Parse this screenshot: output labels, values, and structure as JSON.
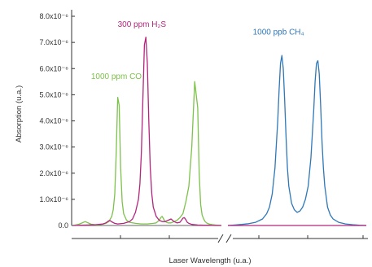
{
  "chart_data": {
    "type": "line",
    "title": "",
    "xlabel": "Laser Wavelength (u.a.)",
    "ylabel": "Absorption (u.a.)",
    "ylim": [
      0,
      8e-06
    ],
    "y_ticks": [
      {
        "value": 0.0,
        "label": "0.0"
      },
      {
        "value": 1e-06,
        "label": "1.0x10⁻⁶"
      },
      {
        "value": 2e-06,
        "label": "2.0x10⁻⁶"
      },
      {
        "value": 3e-06,
        "label": "3.0x10⁻⁶"
      },
      {
        "value": 4e-06,
        "label": "4.0x10⁻⁶"
      },
      {
        "value": 5e-06,
        "label": "5.0x10⁻⁶"
      },
      {
        "value": 6e-06,
        "label": "6.0x10⁻⁶"
      },
      {
        "value": 7e-06,
        "label": "7.0x10⁻⁶"
      },
      {
        "value": 8e-06,
        "label": "8.0x10⁻⁶"
      }
    ],
    "x_axis": {
      "broken": true,
      "tick_labels_shown": false
    },
    "grid": false,
    "panels": [
      {
        "xlim": [
          0,
          1
        ],
        "series": [
          {
            "name": "1000 ppm CO",
            "color": "#7dc24b",
            "label_at": {
              "x": 0.12,
              "y": 5.6e-06
            },
            "x": [
              0.0,
              0.04,
              0.08,
              0.12,
              0.16,
              0.18,
              0.2,
              0.22,
              0.24,
              0.26,
              0.27,
              0.28,
              0.29,
              0.3,
              0.31,
              0.32,
              0.33,
              0.34,
              0.36,
              0.38,
              0.42,
              0.46,
              0.5,
              0.54,
              0.56,
              0.58,
              0.59,
              0.6,
              0.61,
              0.62,
              0.63,
              0.64,
              0.65,
              0.66,
              0.67,
              0.68,
              0.7,
              0.72,
              0.74,
              0.76,
              0.78,
              0.8,
              0.82,
              0.84,
              0.85,
              0.86,
              0.87,
              0.88,
              0.89,
              0.9,
              0.91,
              0.92,
              0.93,
              0.94,
              0.96,
              0.98,
              1.0
            ],
            "values": [
              0.0,
              5e-08,
              1.5e-07,
              5e-08,
              2e-08,
              3e-08,
              5e-08,
              8e-08,
              1.5e-07,
              3.5e-07,
              6e-07,
              1.2e-06,
              2.8e-06,
              4.9e-06,
              4.6e-06,
              2.2e-06,
              9e-07,
              4.5e-07,
              2e-07,
              1.2e-07,
              8e-08,
              6e-08,
              6e-08,
              8e-08,
              1e-07,
              2e-07,
              3e-07,
              3.5e-07,
              2.5e-07,
              1.5e-07,
              1.2e-07,
              1e-07,
              1e-07,
              1e-07,
              1.2e-07,
              1.5e-07,
              2e-07,
              3e-07,
              4.5e-07,
              9e-07,
              1.5e-06,
              3e-06,
              5.5e-06,
              4.5e-06,
              2e-06,
              8e-07,
              4e-07,
              2.5e-07,
              1.5e-07,
              1e-07,
              7e-08,
              5e-08,
              4e-08,
              3e-08,
              2e-08,
              1e-08,
              0.0
            ]
          },
          {
            "name": "300 ppm H₂S",
            "color": "#b4267e",
            "label_at": {
              "x": 0.3,
              "y": 7.6e-06
            },
            "x": [
              0.0,
              0.05,
              0.1,
              0.15,
              0.2,
              0.22,
              0.23,
              0.24,
              0.25,
              0.26,
              0.28,
              0.3,
              0.34,
              0.38,
              0.4,
              0.42,
              0.44,
              0.45,
              0.46,
              0.47,
              0.48,
              0.49,
              0.5,
              0.51,
              0.52,
              0.53,
              0.54,
              0.56,
              0.58,
              0.6,
              0.62,
              0.64,
              0.66,
              0.68,
              0.7,
              0.72,
              0.73,
              0.74,
              0.75,
              0.76,
              0.77,
              0.78,
              0.8,
              0.84,
              0.88,
              0.92,
              0.96,
              1.0
            ],
            "values": [
              0.0,
              1e-08,
              2e-08,
              3e-08,
              6e-08,
              1e-07,
              1.4e-07,
              1.8e-07,
              1.8e-07,
              1.4e-07,
              8e-08,
              6e-08,
              8e-08,
              1.5e-07,
              2.5e-07,
              5e-07,
              1e-06,
              1.6e-06,
              2.8e-06,
              4.8e-06,
              6.9e-06,
              7.2e-06,
              6.2e-06,
              4e-06,
              2.2e-06,
              1.2e-06,
              7e-07,
              3.5e-07,
              2e-07,
              1.5e-07,
              1.5e-07,
              2e-07,
              2.5e-07,
              1.5e-07,
              1e-07,
              1.2e-07,
              2e-07,
              2.8e-07,
              3e-07,
              2.2e-07,
              1.2e-07,
              8e-08,
              4e-08,
              2e-08,
              1e-08,
              1e-08,
              0.0,
              0.0
            ]
          }
        ]
      },
      {
        "xlim": [
          0,
          1
        ],
        "series": [
          {
            "name": "1000 ppb CH₄",
            "color": "#2f78b8",
            "label_at": {
              "x": 0.18,
              "y": 7.3e-06
            },
            "x": [
              0.0,
              0.05,
              0.1,
              0.15,
              0.2,
              0.25,
              0.28,
              0.3,
              0.32,
              0.34,
              0.36,
              0.37,
              0.38,
              0.39,
              0.4,
              0.41,
              0.42,
              0.43,
              0.44,
              0.46,
              0.48,
              0.5,
              0.52,
              0.54,
              0.56,
              0.58,
              0.6,
              0.62,
              0.63,
              0.64,
              0.65,
              0.66,
              0.67,
              0.68,
              0.69,
              0.7,
              0.72,
              0.74,
              0.76,
              0.8,
              0.85,
              0.9,
              0.95,
              1.0
            ],
            "values": [
              0.0,
              2e-08,
              4e-08,
              7e-08,
              1.2e-07,
              2.5e-07,
              4.5e-07,
              7e-07,
              1.2e-06,
              2.2e-06,
              4e-06,
              5.2e-06,
              6.2e-06,
              6.5e-06,
              6e-06,
              4.8e-06,
              3.4e-06,
              2.2e-06,
              1.5e-06,
              8.5e-07,
              6e-07,
              5e-07,
              5.5e-07,
              7e-07,
              1e-06,
              1.5e-06,
              2.6e-06,
              4.4e-06,
              5.5e-06,
              6.2e-06,
              6.3e-06,
              5.8e-06,
              4.6e-06,
              3.2e-06,
              2.2e-06,
              1.5e-06,
              7e-07,
              4e-07,
              2.5e-07,
              1.2e-07,
              6e-08,
              3e-08,
              1e-08,
              0.0
            ]
          },
          {
            "name": "",
            "color": "#b4267e",
            "x": [
              0.0,
              1.0
            ],
            "values": [
              0.0,
              0.0
            ]
          }
        ]
      }
    ]
  },
  "colors": {
    "co": "#7dc24b",
    "h2s": "#b4267e",
    "ch4": "#2f78b8",
    "axis": "#333333"
  }
}
